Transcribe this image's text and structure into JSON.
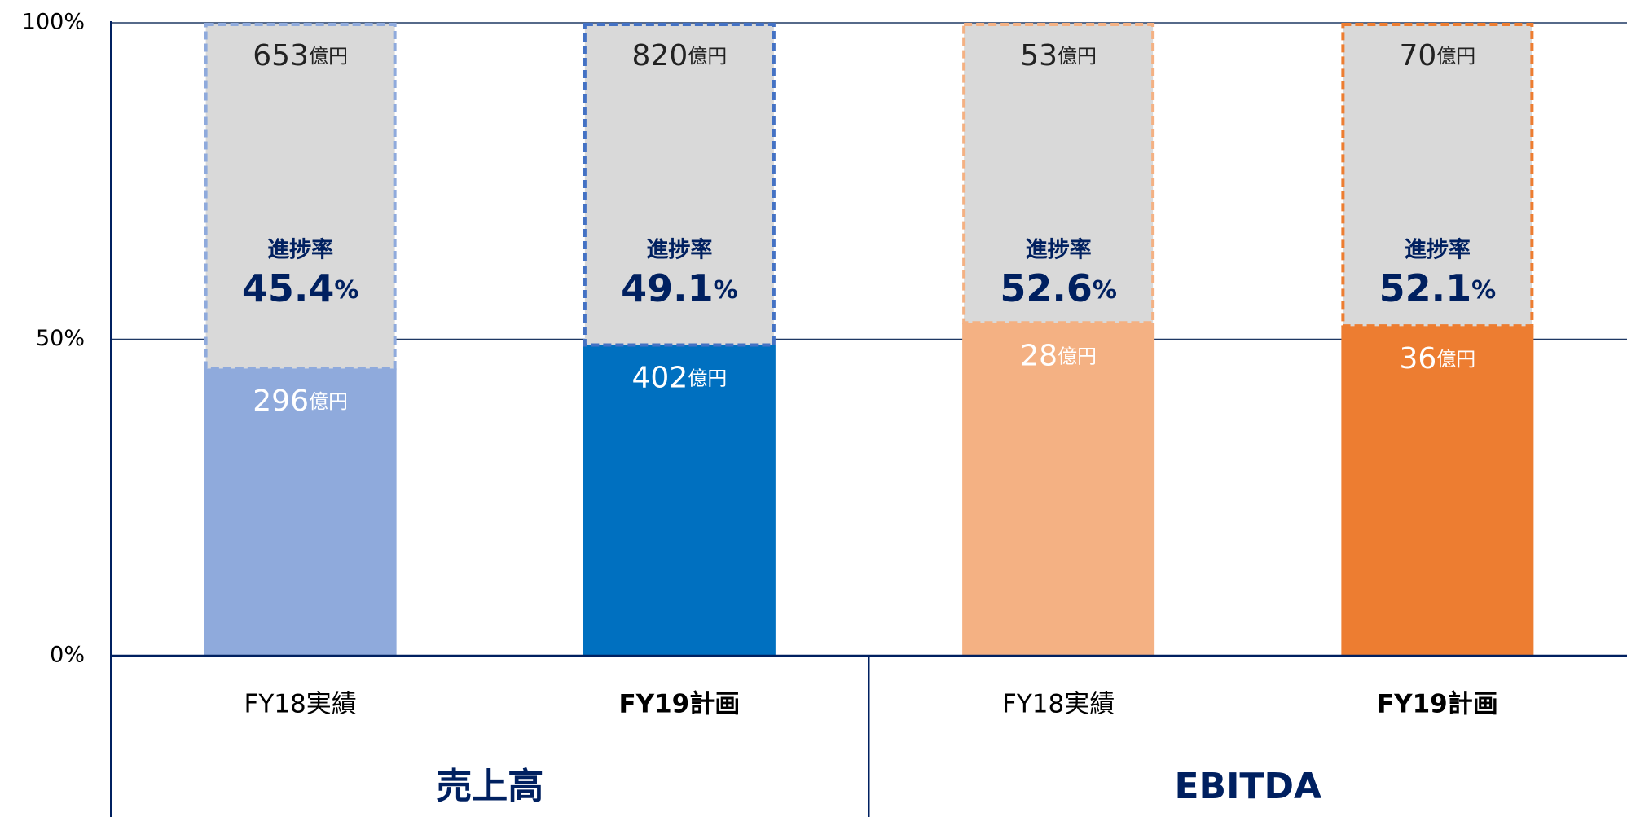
{
  "chart_data": {
    "type": "stacked_bar",
    "categories": [
      "FY18実績",
      "FY19計画",
      "FY18実績",
      "FY19計画"
    ],
    "category_bold": [
      false,
      true,
      false,
      true
    ],
    "groups": [
      {
        "label": "売上高",
        "span": 2
      },
      {
        "label": "EBITDA",
        "span": 2
      }
    ],
    "series": [
      {
        "colors": [
          "#8faadc",
          "#0070c0",
          "#f4b183",
          "#ed7d31"
        ],
        "values": [
          45.4,
          49.1,
          52.6,
          52.1
        ]
      },
      {
        "color": "#d9d9d9",
        "border_colors": [
          "#8faadc",
          "#4472c4",
          "#f4b183",
          "#ed7d31"
        ],
        "values": [
          54.6,
          50.9,
          47.4,
          47.9
        ]
      }
    ],
    "actual_amounts": [
      296,
      402,
      28,
      36
    ],
    "plan_amounts": [
      653,
      820,
      53,
      70
    ],
    "amount_unit": "億円",
    "rate_label": "進捗率",
    "rate_unit": "%",
    "ylim": [
      0,
      100
    ],
    "yticks": [
      {
        "value": 0,
        "label": "0%"
      },
      {
        "value": 50,
        "label": "50%"
      },
      {
        "value": 100,
        "label": "100%"
      }
    ],
    "grid": true
  }
}
